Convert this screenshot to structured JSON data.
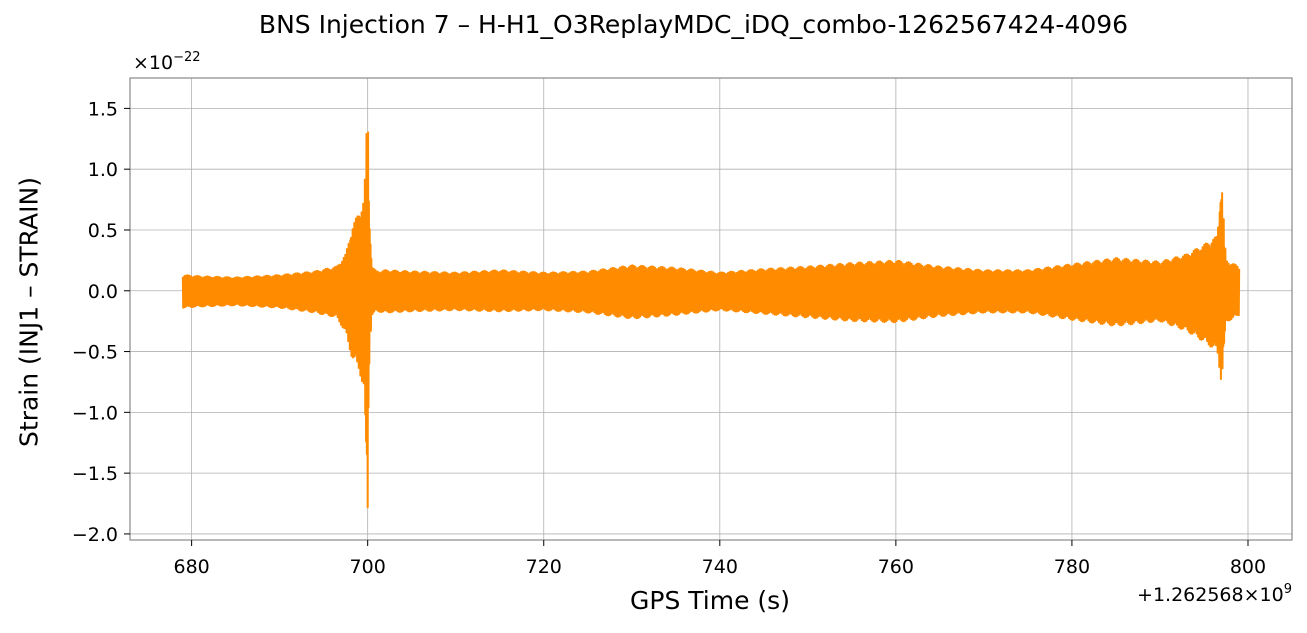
{
  "chart_data": {
    "type": "line",
    "title": "BNS Injection 7 – H-H1_O3ReplayMDC_iDQ_combo-1262567424-4096",
    "xlabel": "GPS Time (s)",
    "ylabel": "Strain (INJ1 – STRAIN)",
    "y_scale_label": "×10",
    "y_scale_exponent": "−22",
    "x_offset_label": "+1.262568×10",
    "x_offset_exponent": "9",
    "xlim": [
      673,
      805
    ],
    "ylim": [
      -2.05,
      1.75
    ],
    "xticks": [
      680,
      700,
      720,
      740,
      760,
      780,
      800
    ],
    "xtick_labels": [
      "680",
      "700",
      "720",
      "740",
      "760",
      "780",
      "800"
    ],
    "yticks": [
      1.5,
      1.0,
      0.5,
      0.0,
      -0.5,
      -1.0,
      -1.5,
      -2.0
    ],
    "ytick_labels": [
      "1.5",
      "1.0",
      "0.5",
      "0.0",
      "−0.5",
      "−1.0",
      "−1.5",
      "−2.0"
    ],
    "grid": true,
    "series": [
      {
        "color": "#ff8c00",
        "envelope": {
          "x": [
            679,
            681,
            685,
            690,
            694,
            696.5,
            697.5,
            698.2,
            699,
            699.6,
            700.0,
            700.2,
            700.5,
            701,
            702,
            705,
            710,
            715,
            720,
            725,
            730,
            735,
            740,
            745,
            750,
            755,
            760,
            765,
            770,
            775,
            780,
            785,
            790,
            793,
            795,
            796.5,
            797.0,
            797.5,
            799
          ],
          "upper": [
            0.13,
            0.12,
            0.11,
            0.13,
            0.16,
            0.2,
            0.3,
            0.52,
            0.65,
            0.76,
            1.58,
            0.6,
            0.2,
            0.16,
            0.17,
            0.16,
            0.15,
            0.17,
            0.15,
            0.16,
            0.21,
            0.19,
            0.15,
            0.18,
            0.2,
            0.23,
            0.25,
            0.2,
            0.17,
            0.17,
            0.22,
            0.27,
            0.24,
            0.3,
            0.38,
            0.45,
            0.93,
            0.25,
            0.2
          ],
          "lower": [
            -0.14,
            -0.13,
            -0.12,
            -0.14,
            -0.18,
            -0.22,
            -0.35,
            -0.55,
            -0.65,
            -0.82,
            -1.87,
            -0.5,
            -0.2,
            -0.17,
            -0.18,
            -0.17,
            -0.16,
            -0.17,
            -0.16,
            -0.18,
            -0.23,
            -0.2,
            -0.16,
            -0.19,
            -0.22,
            -0.25,
            -0.26,
            -0.21,
            -0.18,
            -0.18,
            -0.24,
            -0.29,
            -0.25,
            -0.33,
            -0.42,
            -0.5,
            -0.77,
            -0.26,
            -0.2
          ]
        }
      }
    ]
  }
}
